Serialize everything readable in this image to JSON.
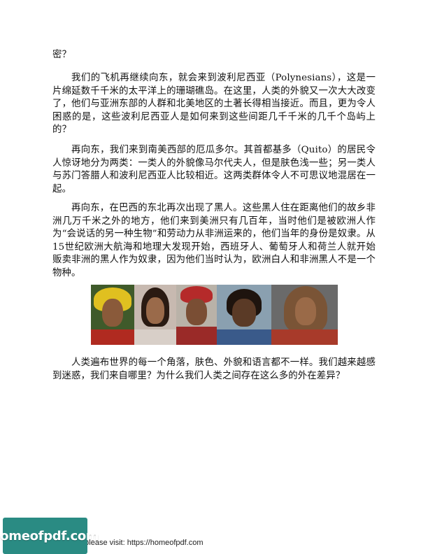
{
  "paragraphs": [
    "密？",
    "我们的飞机再继续向东，就会来到波利尼西亚（Polynesians），这是一片绵延数千千米的太平洋上的珊瑚礁岛。在这里，人类的外貌又一次大大改变了，他们与亚洲东部的人群和北美地区的土著长得相当接近。而且，更为令人困惑的是，这些波利尼西亚人是如何来到这些间距几千千米的几千个岛屿上的？",
    "再向东，我们来到南美西部的厄瓜多尔。其首都基多（Quito）的居民令人惊讶地分为两类：一类人的外貌像马尔代夫人，但是肤色浅一些；另一类人与苏门答腊人和波利尼西亚人比较相近。这两类群体令人不可思议地混居在一起。",
    "再向东，在巴西的东北再次出现了黑人。这些黑人住在距离他们的故乡非洲几万千米之外的地方，他们来到美洲只有几百年，当时他们是被欧洲人作为“会说话的另一种生物”和劳动力从非洲运来的，他们当年的身份是奴隶。从15世纪欧洲大航海和地理大发现开始，西班牙人、葡萄牙人和荷兰人就开始贩卖非洲的黑人作为奴隶，因为他们当时认为，欧洲白人和非洲黑人不是一个物种。",
    "人类遍布世界的每一个角落，肤色、外貌和语言都不一样。我们越来越感到迷惑，我们来自哪里？为什么我们人类之间存在这么多的外在差异？"
  ],
  "photo_strip": {
    "portraits": [
      {
        "name": "portrait-feather-headdress",
        "bg": "#3f5a2a",
        "skin": "#8a5a3a",
        "hair": "#e0c020",
        "cloth": "#b02a20"
      },
      {
        "name": "portrait-girl",
        "bg": "#c7b9b0",
        "skin": "#9a6a4a",
        "hair": "#2a1a12",
        "cloth": "#d8cfc8"
      },
      {
        "name": "portrait-man-red-headwrap",
        "bg": "#b9b2a8",
        "skin": "#7a4e34",
        "hair": "#b52a2a",
        "cloth": "#9a2a28"
      },
      {
        "name": "portrait-smiling-child",
        "bg": "#8aa0b0",
        "skin": "#5a3a26",
        "hair": "#1e140e",
        "cloth": "#3a5a8a"
      },
      {
        "name": "portrait-curly-hair-child",
        "bg": "#6a6a6a",
        "skin": "#9a6a48",
        "hair": "#7a5436",
        "cloth": "#a83a2a"
      }
    ]
  },
  "footer": {
    "text": "e please visit: https://homeofpdf.com"
  },
  "badge": {
    "text": "homeofpdf.com",
    "color": "#2a8b83"
  }
}
